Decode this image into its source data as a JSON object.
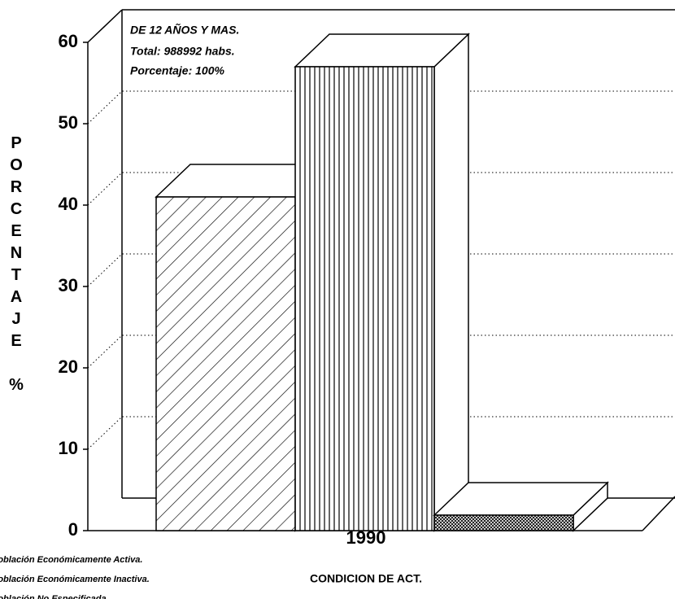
{
  "chart_data": {
    "type": "bar3d",
    "annotations": [
      "DE 12 AÑOS Y MAS.",
      "Total: 988992 habs.",
      "Porcentaje: 100%"
    ],
    "y_label": "PORCENTAJE %",
    "x_label": "CONDICION DE ACT.",
    "categories": [
      "1990"
    ],
    "series": [
      {
        "name": "Población Económicamente Activa.",
        "pattern": "diagonal",
        "color": "#000000",
        "values": [
          41
        ]
      },
      {
        "name": "Población Económicamente Inactiva.",
        "pattern": "vertical",
        "color": "#000000",
        "values": [
          57
        ]
      },
      {
        "name": "Población No Especificada.",
        "pattern": "crosshatch",
        "color": "#000000",
        "values": [
          1.9
        ]
      }
    ],
    "ylim": [
      0,
      60
    ],
    "yticks": [
      0,
      10,
      20,
      30,
      40,
      50,
      60
    ],
    "grid": true
  }
}
